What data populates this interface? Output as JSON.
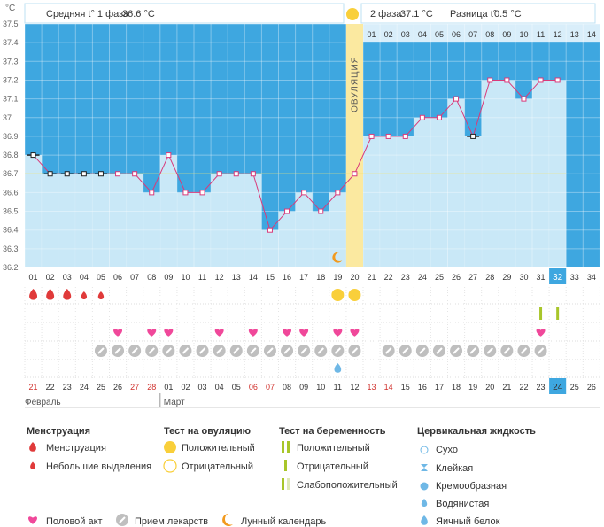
{
  "unit_label": "°C",
  "header": {
    "phase1_label": "Средняя t° 1 фаза",
    "phase1_value": "36.6 °C",
    "phase2_label": "2 фаза",
    "phase2_value": "37.1 °C",
    "diff_label": "Разница t°",
    "diff_value": "0.5 °C"
  },
  "ovulation_label": "ОВУЛЯЦИЯ",
  "chart_data": {
    "type": "line",
    "ylabel": "°C",
    "ylim": [
      36.2,
      37.5
    ],
    "yticks": [
      "36.2",
      "36.3",
      "36.4",
      "36.5",
      "36.6",
      "36.7",
      "36.8",
      "36.9",
      "37",
      "37.1",
      "37.2",
      "37.3",
      "37.4",
      "37.5"
    ],
    "x": [
      "01",
      "02",
      "03",
      "04",
      "05",
      "06",
      "07",
      "08",
      "09",
      "10",
      "11",
      "12",
      "13",
      "14",
      "15",
      "16",
      "17",
      "18",
      "19",
      "20",
      "21",
      "22",
      "23",
      "24",
      "25",
      "26",
      "27",
      "28",
      "29",
      "30",
      "31",
      "32",
      "33",
      "34"
    ],
    "values": [
      36.8,
      36.7,
      36.7,
      36.7,
      36.7,
      36.7,
      36.7,
      36.6,
      36.8,
      36.6,
      36.6,
      36.7,
      36.7,
      36.7,
      36.4,
      36.5,
      36.6,
      36.5,
      36.6,
      36.7,
      36.9,
      36.9,
      36.9,
      37.0,
      37.0,
      37.1,
      36.9,
      37.2,
      37.2,
      37.1,
      37.2,
      37.2,
      null,
      null
    ],
    "excluded_days": [
      1,
      2,
      3,
      4,
      5,
      27
    ],
    "coverline": 36.7,
    "ovulation_day": 20,
    "current_day": 32,
    "top_phase2_days": [
      "01",
      "02",
      "03",
      "04",
      "05",
      "06",
      "07",
      "08",
      "09",
      "10",
      "11",
      "12",
      "13",
      "14"
    ],
    "dates": [
      "21",
      "22",
      "23",
      "24",
      "25",
      "26",
      "27",
      "28",
      "01",
      "02",
      "03",
      "04",
      "05",
      "06",
      "07",
      "08",
      "09",
      "10",
      "11",
      "12",
      "13",
      "14",
      "15",
      "16",
      "17",
      "18",
      "19",
      "20",
      "21",
      "22",
      "23",
      "24",
      "25",
      "26"
    ],
    "weekend_days": [
      6,
      7,
      13,
      14,
      20,
      21
    ],
    "months": [
      "Февраль",
      "Март"
    ],
    "month_break_day": 9,
    "moon_day": 19
  },
  "markers": {
    "menstruation": [
      1,
      2,
      3
    ],
    "spotting": [
      4,
      5
    ],
    "ovulation_test_positive": [
      19,
      20
    ],
    "pregnancy_test_positive": [
      31,
      32
    ],
    "intercourse": [
      6,
      8,
      9,
      12,
      14,
      16,
      17,
      19,
      20,
      31
    ],
    "medication": [
      5,
      6,
      7,
      8,
      9,
      10,
      11,
      12,
      13,
      14,
      15,
      16,
      17,
      18,
      19,
      20,
      22,
      23,
      24,
      25,
      26,
      27,
      28,
      29,
      30,
      31
    ],
    "cervical_watery": [
      19
    ]
  },
  "legend": {
    "menstruation_title": "Менструация",
    "menstruation": "Менструация",
    "spotting": "Небольшие выделения",
    "ovtest_title": "Тест на овуляцию",
    "ovtest_positive": "Положительный",
    "ovtest_negative": "Отрицательный",
    "pregtest_title": "Тест на беременность",
    "pregtest_positive": "Положительный",
    "pregtest_negative": "Отрицательный",
    "pregtest_weak": "Слабоположительный",
    "cervical_title": "Цервикальная жидкость",
    "cervical_dry": "Сухо",
    "cervical_sticky": "Клейкая",
    "cervical_creamy": "Кремообразная",
    "cervical_watery": "Водянистая",
    "cervical_eggwhite": "Яичный белок",
    "intercourse": "Половой акт",
    "medication": "Прием лекарств",
    "moon": "Лунный календарь"
  },
  "colors": {
    "phase1_bg": "#3ea7e0",
    "phase2_bg": "#3ea7e0",
    "bar": "#c9e8f7",
    "line": "#d93a7a",
    "ovulation": "#fbe9a0",
    "coverline": "#f0e060",
    "red": "#e03a3a",
    "pink": "#f0489a",
    "yellow": "#f9cf3a",
    "green": "#a8c62a",
    "current": "#3ea7e0",
    "moon": "#f29a1e"
  }
}
